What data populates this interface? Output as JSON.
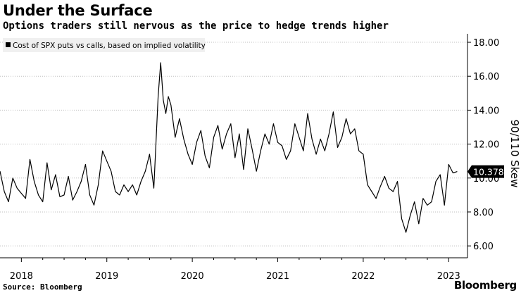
{
  "title": "Under the Surface",
  "subtitle": "Options traders still nervous as the price to hedge trends higher",
  "source": "Source: Bloomberg",
  "brand": "Bloomberg",
  "colors": {
    "line": "#000000",
    "grid": "#bfbfbf",
    "axis": "#000000",
    "label_bg": "#000000",
    "legend_bg": "#f0f0f0"
  },
  "chart_data": {
    "type": "line",
    "series": [
      {
        "name": "Cost of SPX puts vs calls, based on implied volatility",
        "x": [
          2017.75,
          2017.8,
          2017.85,
          2017.9,
          2017.95,
          2018.0,
          2018.05,
          2018.1,
          2018.15,
          2018.2,
          2018.25,
          2018.3,
          2018.35,
          2018.4,
          2018.45,
          2018.5,
          2018.55,
          2018.6,
          2018.65,
          2018.7,
          2018.75,
          2018.8,
          2018.85,
          2018.9,
          2018.95,
          2019.0,
          2019.05,
          2019.1,
          2019.15,
          2019.2,
          2019.25,
          2019.3,
          2019.35,
          2019.4,
          2019.45,
          2019.5,
          2019.55,
          2019.6,
          2019.63,
          2019.66,
          2019.69,
          2019.72,
          2019.75,
          2019.8,
          2019.85,
          2019.9,
          2019.95,
          2020.0,
          2020.05,
          2020.1,
          2020.15,
          2020.2,
          2020.25,
          2020.3,
          2020.35,
          2020.4,
          2020.45,
          2020.5,
          2020.55,
          2020.6,
          2020.65,
          2020.7,
          2020.75,
          2020.8,
          2020.85,
          2020.9,
          2020.95,
          2021.0,
          2021.05,
          2021.1,
          2021.15,
          2021.2,
          2021.25,
          2021.3,
          2021.35,
          2021.4,
          2021.45,
          2021.5,
          2021.55,
          2021.6,
          2021.65,
          2021.7,
          2021.75,
          2021.8,
          2021.85,
          2021.9,
          2021.95,
          2022.0,
          2022.05,
          2022.1,
          2022.15,
          2022.2,
          2022.25,
          2022.3,
          2022.35,
          2022.4,
          2022.45,
          2022.5,
          2022.55,
          2022.6,
          2022.65,
          2022.7,
          2022.75,
          2022.8,
          2022.85,
          2022.9,
          2022.95,
          2023.0,
          2023.05,
          2023.1
        ],
        "y": [
          10.4,
          9.2,
          8.6,
          10.0,
          9.4,
          9.1,
          8.8,
          11.1,
          9.8,
          9.0,
          8.6,
          10.9,
          9.3,
          10.2,
          8.9,
          9.0,
          10.1,
          8.7,
          9.2,
          9.8,
          10.8,
          9.0,
          8.4,
          9.6,
          11.6,
          11.0,
          10.4,
          9.2,
          9.0,
          9.6,
          9.2,
          9.6,
          9.0,
          9.8,
          10.4,
          11.4,
          9.4,
          14.8,
          16.8,
          14.6,
          13.8,
          14.8,
          14.3,
          12.4,
          13.5,
          12.3,
          11.4,
          10.8,
          12.1,
          12.8,
          11.3,
          10.6,
          12.4,
          13.1,
          11.7,
          12.6,
          13.2,
          11.2,
          12.6,
          10.5,
          12.9,
          11.7,
          10.4,
          11.6,
          12.6,
          12.0,
          13.2,
          12.1,
          11.9,
          11.1,
          11.6,
          13.2,
          12.4,
          11.6,
          13.8,
          12.3,
          11.4,
          12.3,
          11.6,
          12.6,
          13.9,
          11.8,
          12.4,
          13.5,
          12.6,
          12.9,
          11.6,
          11.4,
          9.6,
          9.2,
          8.8,
          9.5,
          10.1,
          9.4,
          9.2,
          9.8,
          7.6,
          6.8,
          7.8,
          8.6,
          7.3,
          8.8,
          8.4,
          8.6,
          9.8,
          10.2,
          8.4,
          10.8,
          10.3,
          10.38
        ]
      }
    ],
    "legend": [
      "Cost of SPX puts vs calls, based on implied volatility"
    ],
    "legend_position": "top-left",
    "ylabel": "90/110 Skew",
    "y_ticks": [
      "6.00",
      "8.00",
      "10.00",
      "12.00",
      "14.00",
      "16.00",
      "18.00"
    ],
    "ylim": [
      5.3,
      18.5
    ],
    "x_ticks": [
      "2018",
      "2019",
      "2020",
      "2021",
      "2022",
      "2023"
    ],
    "xlim": [
      2017.75,
      2023.22
    ],
    "last_value_label": "10.3788",
    "grid": "horizontal dotted",
    "y_axis_side": "right"
  }
}
